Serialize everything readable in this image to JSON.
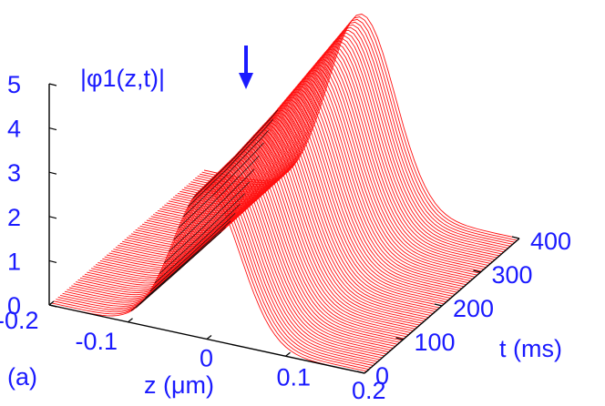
{
  "panel_label": "(a)",
  "colors": {
    "text": "#1a1aff",
    "surface": "#ff1010",
    "hidden": "#111111",
    "arrow": "#1a1aff"
  },
  "chart_data": {
    "type": "surface",
    "zlabel": "|φ1(z,t)|",
    "xlabel": "z (μm)",
    "ylabel": "t (ms)",
    "xlim": [
      -0.2,
      0.2
    ],
    "ylim": [
      0,
      400
    ],
    "zlim": [
      0,
      5
    ],
    "x_ticks": [
      "-0.2",
      "-0.1",
      "0",
      "0.1",
      "0.2"
    ],
    "y_ticks": [
      "0",
      "100",
      "200",
      "300",
      "400"
    ],
    "z_ticks": [
      "0",
      "1",
      "2",
      "3",
      "4",
      "5"
    ],
    "profile": {
      "peak_center_z": 0.0,
      "peak_width_z": 0.06
    },
    "peak_amplitude_vs_t": {
      "t": [
        0,
        100,
        200,
        300,
        400
      ],
      "amplitude": [
        3.4,
        3.5,
        3.7,
        4.0,
        4.3
      ]
    },
    "marker": {
      "type": "arrow",
      "t": 100
    }
  }
}
